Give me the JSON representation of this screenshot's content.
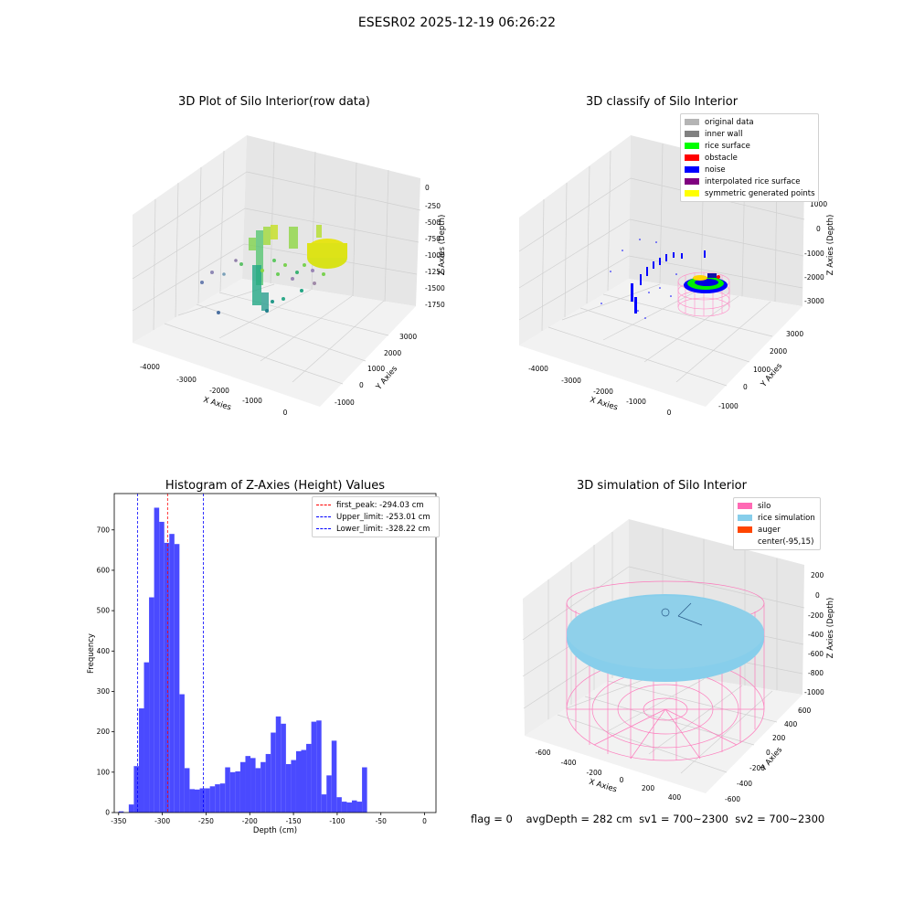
{
  "figure": {
    "suptitle": "ESESR02 2025-12-19 06:26:22",
    "status": {
      "flag": "flag = 0",
      "avg_depth": "avgDepth = 282 cm",
      "sv1": "sv1 = 700~2300",
      "sv2": "sv2 = 700~2300"
    }
  },
  "chart_data": [
    {
      "type": "scatter",
      "projection": "3d",
      "title": "3D Plot of Silo Interior(row data)",
      "xlabel": "X Axies",
      "ylabel": "Y Axies",
      "zlabel": "Z Axies (Depth)",
      "xticks": [
        "-4000",
        "-3000",
        "-2000",
        "-1000",
        "0"
      ],
      "yticks": [
        "-1000",
        "0",
        "1000",
        "2000",
        "3000"
      ],
      "zticks": [
        "0",
        "-250",
        "-500",
        "-750",
        "-1000",
        "-1250",
        "-1500",
        "-1750"
      ],
      "colormap": "viridis"
    },
    {
      "type": "scatter",
      "projection": "3d",
      "title": "3D classify of Silo Interior",
      "zlabel": "Z Axies (Depth)",
      "xlabel": "X Axies",
      "ylabel": "Y Axies",
      "xticks": [
        "-4000",
        "-3000",
        "-2000",
        "-1000",
        "0"
      ],
      "yticks": [
        "-1000",
        "0",
        "1000",
        "2000",
        "3000"
      ],
      "zticks": [
        "1000",
        "0",
        "-1000",
        "-2000",
        "-3000"
      ],
      "legend_position": "top-right",
      "legend": [
        {
          "label": "original data",
          "color": "#b4b4b4"
        },
        {
          "label": "inner wall",
          "color": "#808080"
        },
        {
          "label": "rice surface",
          "color": "#00ff00"
        },
        {
          "label": "obstacle",
          "color": "#ff0000"
        },
        {
          "label": "noise",
          "color": "#0000ff"
        },
        {
          "label": "interpolated rice surface",
          "color": "#800080"
        },
        {
          "label": "symmetric generated points",
          "color": "#ffff00"
        }
      ]
    },
    {
      "type": "bar",
      "title": "Histogram of Z-Axies (Height) Values",
      "xlabel": "Depth (cm)",
      "ylabel": "Frequency",
      "bar_color": "#4a4aff",
      "xlim": [
        -355,
        13
      ],
      "ylim": [
        0,
        790
      ],
      "xticks": [
        -350,
        -300,
        -250,
        -200,
        -150,
        -100,
        -50,
        0
      ],
      "yticks": [
        0,
        100,
        200,
        300,
        400,
        500,
        600,
        700
      ],
      "bin_start": -350,
      "bin_width": 5.8,
      "values": [
        3,
        0,
        20,
        115,
        258,
        372,
        533,
        755,
        720,
        668,
        690,
        665,
        293,
        110,
        58,
        57,
        60,
        60,
        65,
        70,
        72,
        112,
        100,
        102,
        125,
        140,
        135,
        110,
        125,
        145,
        198,
        238,
        220,
        120,
        130,
        152,
        155,
        170,
        225,
        228,
        45,
        92,
        178,
        38,
        27,
        25,
        30,
        27,
        112
      ],
      "legend_position": "top-right",
      "reference_lines": [
        {
          "label": "first_peak: -294.03 cm",
          "x": -294.03,
          "color": "#ff0000"
        },
        {
          "label": "Upper_limit: -253.01 cm",
          "x": -253.01,
          "color": "#0000ff"
        },
        {
          "label": "Lower_limit: -328.22 cm",
          "x": -328.22,
          "color": "#0000ff"
        }
      ]
    },
    {
      "type": "scatter",
      "projection": "3d",
      "title": "3D simulation of Silo Interior",
      "xlabel": "X Axies",
      "ylabel": "Y Axies",
      "zlabel": "Z Axies (Depth)",
      "xticks": [
        "-600",
        "-400",
        "-200",
        "0",
        "200",
        "400"
      ],
      "yticks": [
        "-600",
        "-400",
        "-200",
        "0",
        "200",
        "400",
        "600"
      ],
      "zticks": [
        "200",
        "0",
        "-200",
        "-400",
        "-600",
        "-800",
        "-1000"
      ],
      "legend_position": "top-right",
      "legend": [
        {
          "label": "silo",
          "color": "#ff69b4"
        },
        {
          "label": "rice simulation",
          "color": "#87ceeb"
        },
        {
          "label": "auger",
          "color": "#ff4500"
        },
        {
          "label": "center(-95,15)",
          "color": ""
        }
      ]
    }
  ]
}
